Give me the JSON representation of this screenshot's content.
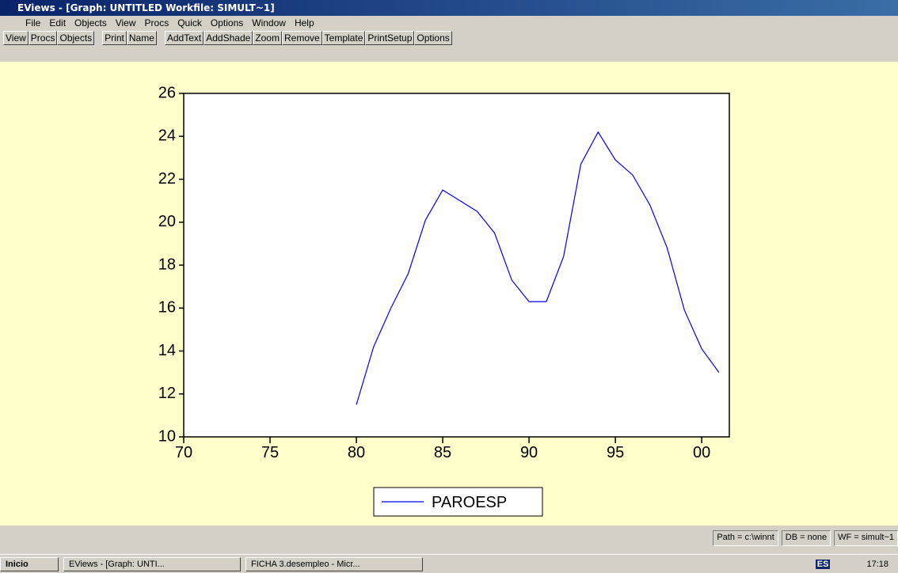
{
  "window": {
    "title": "EViews - [Graph: UNTITLED   Workfile: SIMULT~1]",
    "menu": [
      "File",
      "Edit",
      "Objects",
      "View",
      "Procs",
      "Quick",
      "Options",
      "Window",
      "Help"
    ],
    "toolbar": [
      [
        "View",
        "Procs",
        "Objects"
      ],
      [
        "Print",
        "Name"
      ],
      [
        "AddText",
        "AddShade",
        "Zoom",
        "Remove",
        "Template",
        "PrintSetup",
        "Options"
      ]
    ]
  },
  "chart_data": {
    "type": "line",
    "x": [
      80,
      81,
      82,
      83,
      84,
      85,
      86,
      87,
      88,
      89,
      90,
      91,
      92,
      93,
      94,
      95,
      96,
      97,
      98,
      99,
      100,
      101
    ],
    "series": [
      {
        "name": "PAROESP",
        "color": "#0000ff",
        "values": [
          11.5,
          14.2,
          16.0,
          17.6,
          20.1,
          21.5,
          21.0,
          20.5,
          19.5,
          17.3,
          16.3,
          16.3,
          18.4,
          22.7,
          24.2,
          22.9,
          22.2,
          20.8,
          18.8,
          15.9,
          14.1,
          13.0
        ]
      }
    ],
    "xlim": [
      70,
      101.6
    ],
    "xticks": [
      70,
      75,
      80,
      85,
      90,
      95,
      {
        "value": 100,
        "label": "00"
      }
    ],
    "ylim": [
      10,
      26
    ],
    "yticks": [
      10,
      12,
      14,
      16,
      18,
      20,
      22,
      24,
      26
    ]
  },
  "status_bar": [
    "Path = c:\\winnt",
    "DB = none",
    "WF = simult~1"
  ],
  "taskbar": {
    "start": "Inicio",
    "tasks": [
      "EViews - [Graph: UNTI...",
      "FICHA 3.desempleo - Micr..."
    ],
    "language": "ES",
    "clock": "17:18"
  }
}
